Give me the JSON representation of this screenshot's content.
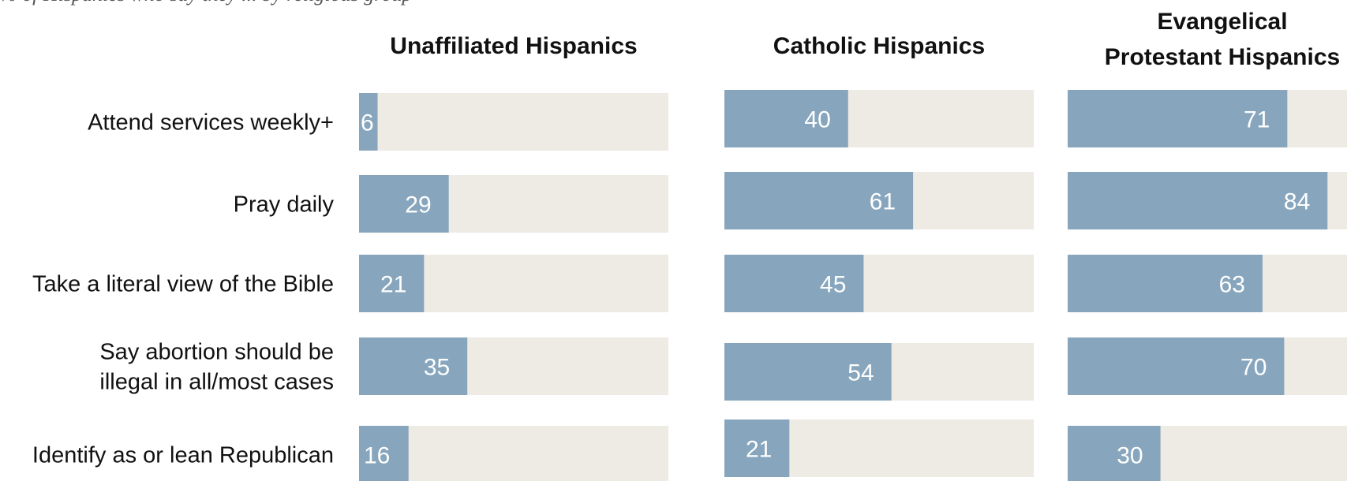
{
  "subtitle": "% of Hispanics who say they ... by religious group",
  "chart_data": {
    "type": "bar",
    "orientation": "horizontal",
    "value_max": 100,
    "bar_color": "#87a6bd",
    "track_color": "#eeeae4",
    "value_label_color": "#ffffff",
    "categories": [
      [
        "Attend services weekly+"
      ],
      [
        "Pray daily"
      ],
      [
        "Take a literal view of the Bible"
      ],
      [
        "Say abortion should be",
        "illegal in all/most cases"
      ],
      [
        "Identify as or lean Republican"
      ]
    ],
    "series": [
      {
        "name": [
          "Unaffiliated Hispanics"
        ],
        "values": [
          6,
          29,
          21,
          35,
          16
        ]
      },
      {
        "name": [
          "Catholic Hispanics"
        ],
        "values": [
          40,
          61,
          45,
          54,
          21
        ]
      },
      {
        "name": [
          "Evangelical",
          "Protestant Hispanics"
        ],
        "values": [
          71,
          84,
          63,
          70,
          30
        ]
      }
    ]
  }
}
